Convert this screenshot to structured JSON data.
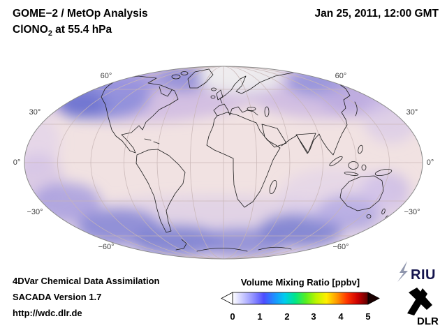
{
  "header": {
    "title": "GOME−2 / MetOp Analysis",
    "species_prefix": "ClONO",
    "species_sub": "2",
    "species_suffix": " at 55.4 hPa",
    "datetime": "Jan 25, 2011, 12:00 GMT"
  },
  "map": {
    "lat_labels": {
      "n60_left": "60°",
      "n60_right": "60°",
      "n30_left": "30°",
      "n30_right": "30°",
      "eq_left": "0°",
      "eq_right": "0°",
      "s30_left": "−30°",
      "s30_right": "−30°",
      "s60_left": "−60°",
      "s60_right": "−60°"
    }
  },
  "colorbar": {
    "title": "Volume Mixing Ratio [ppbv]",
    "ticks": [
      "0",
      "1",
      "2",
      "3",
      "4",
      "5"
    ],
    "min": 0,
    "max": 5,
    "gradient": [
      "#ffffff",
      "#c9c9ff",
      "#8f8fff",
      "#4d4dff",
      "#1e90ff",
      "#00ccee",
      "#00e68a",
      "#55ee22",
      "#bbf400",
      "#ffee00",
      "#ff9900",
      "#ff3300",
      "#cc0000",
      "#5a0000"
    ]
  },
  "footer": {
    "line1": "4DVar Chemical Data Assimilation",
    "line2": "SACADA Version 1.7",
    "line3": "http://wdc.dlr.de"
  },
  "logos": {
    "riu": "RIU",
    "dlr": "DLR"
  }
}
